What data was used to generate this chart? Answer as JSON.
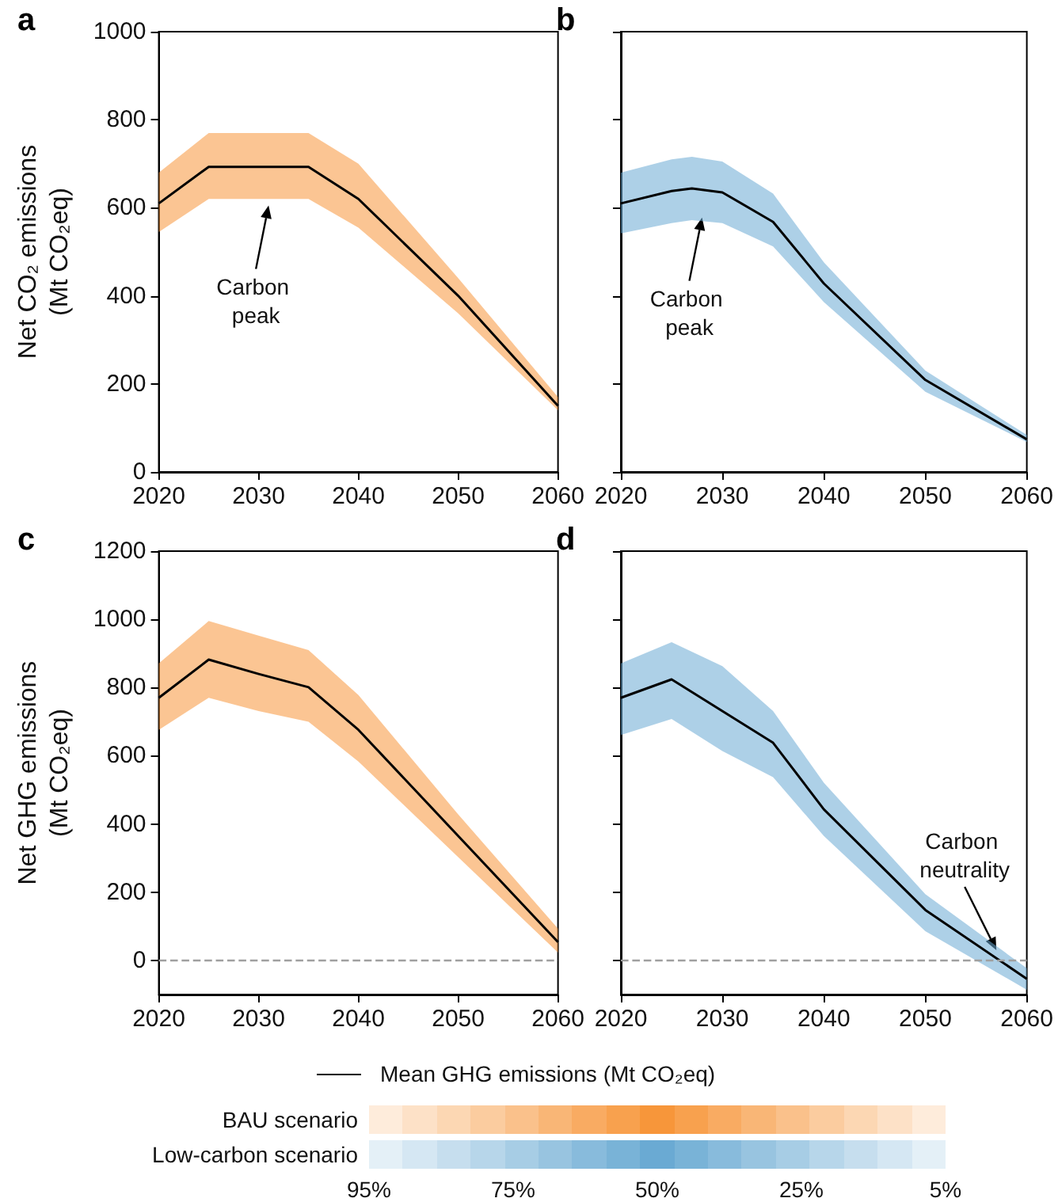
{
  "chart_data": [
    {
      "type": "line",
      "title": "a",
      "ylabel": "Net CO₂ emissions\n(Mt CO₂eq)",
      "xlim": [
        2020,
        2060
      ],
      "xticks": [
        2020,
        2030,
        2040,
        2050,
        2060
      ],
      "ylim": [
        0,
        1000
      ],
      "yticks": [
        0,
        200,
        400,
        600,
        800,
        1000
      ],
      "colors": [
        "#f7963a"
      ],
      "series": [
        {
          "color": "#000000",
          "x": [
            2020,
            2025,
            2030,
            2035,
            2040,
            2050,
            2060
          ],
          "values": [
            610,
            693,
            693,
            693,
            620,
            400,
            150
          ],
          "lower": [
            545,
            620,
            620,
            620,
            555,
            360,
            140
          ],
          "upper": [
            680,
            770,
            770,
            770,
            700,
            440,
            170
          ]
        }
      ],
      "annotations": [
        {
          "text": "Carbon peak",
          "x": 2031,
          "y": 605
        }
      ]
    },
    {
      "type": "line",
      "title": "b",
      "xlim": [
        2020,
        2060
      ],
      "xticks": [
        2020,
        2030,
        2040,
        2050,
        2060
      ],
      "ylim": [
        0,
        1000
      ],
      "yticks": [
        0,
        200,
        400,
        600,
        800,
        1000
      ],
      "tick_labels": "x",
      "colors": [
        "#6aaad3"
      ],
      "series": [
        {
          "color": "#000000",
          "x": [
            2020,
            2025,
            2027,
            2030,
            2035,
            2040,
            2050,
            2060
          ],
          "values": [
            610,
            638,
            644,
            635,
            568,
            428,
            209,
            74
          ],
          "lower": [
            542,
            565,
            572,
            565,
            512,
            386,
            182,
            68
          ],
          "upper": [
            680,
            710,
            716,
            705,
            632,
            476,
            230,
            84
          ]
        }
      ],
      "annotations": [
        {
          "text": "Carbon peak",
          "x": 2028,
          "y": 578
        }
      ]
    },
    {
      "type": "line",
      "title": "c",
      "ylabel": "Net GHG emissions\n(Mt CO₂eq)",
      "xlim": [
        2020,
        2060
      ],
      "xticks": [
        2020,
        2030,
        2040,
        2050,
        2060
      ],
      "ylim": [
        -100,
        1200
      ],
      "yticks": [
        0,
        200,
        400,
        600,
        800,
        1000,
        1200
      ],
      "colors": [
        "#f7963a"
      ],
      "series": [
        {
          "color": "#000000",
          "x": [
            2020,
            2025,
            2030,
            2035,
            2040,
            2050,
            2060
          ],
          "values": [
            770,
            882,
            840,
            801,
            676,
            365,
            54
          ],
          "lower": [
            676,
            770,
            731,
            700,
            583,
            303,
            23
          ],
          "upper": [
            871,
            995,
            952,
            910,
            778,
            428,
            93
          ]
        }
      ],
      "ref_lines": [
        {
          "axis": "y",
          "value": 0,
          "color": "#a0a0a0",
          "line_style": "dashed"
        }
      ]
    },
    {
      "type": "line",
      "title": "d",
      "xlim": [
        2020,
        2060
      ],
      "xticks": [
        2020,
        2030,
        2040,
        2050,
        2060
      ],
      "ylim": [
        -100,
        1200
      ],
      "yticks": [
        0,
        200,
        400,
        600,
        800,
        1000,
        1200
      ],
      "tick_labels": "x",
      "colors": [
        "#6aaad3"
      ],
      "series": [
        {
          "color": "#000000",
          "x": [
            2020,
            2025,
            2030,
            2035,
            2040,
            2050,
            2060
          ],
          "values": [
            770,
            824,
            731,
            638,
            443,
            148,
            -54
          ],
          "lower": [
            661,
            708,
            614,
            537,
            365,
            86,
            -86
          ],
          "upper": [
            871,
            933,
            863,
            731,
            521,
            194,
            -23
          ]
        }
      ],
      "ref_lines": [
        {
          "axis": "y",
          "value": 0,
          "color": "#a0a0a0",
          "line_style": "dashed"
        }
      ],
      "annotations": [
        {
          "text": "Carbon neutrality",
          "x": 2057,
          "y": 30
        }
      ]
    },
    {
      "type": "other",
      "annotations": [
        "Mean GHG emissions (Mt CO₂eq)",
        "BAU scenario",
        "Low-carbon scenario",
        "95%",
        "75%",
        "50%",
        "25%",
        "5%"
      ]
    }
  ]
}
